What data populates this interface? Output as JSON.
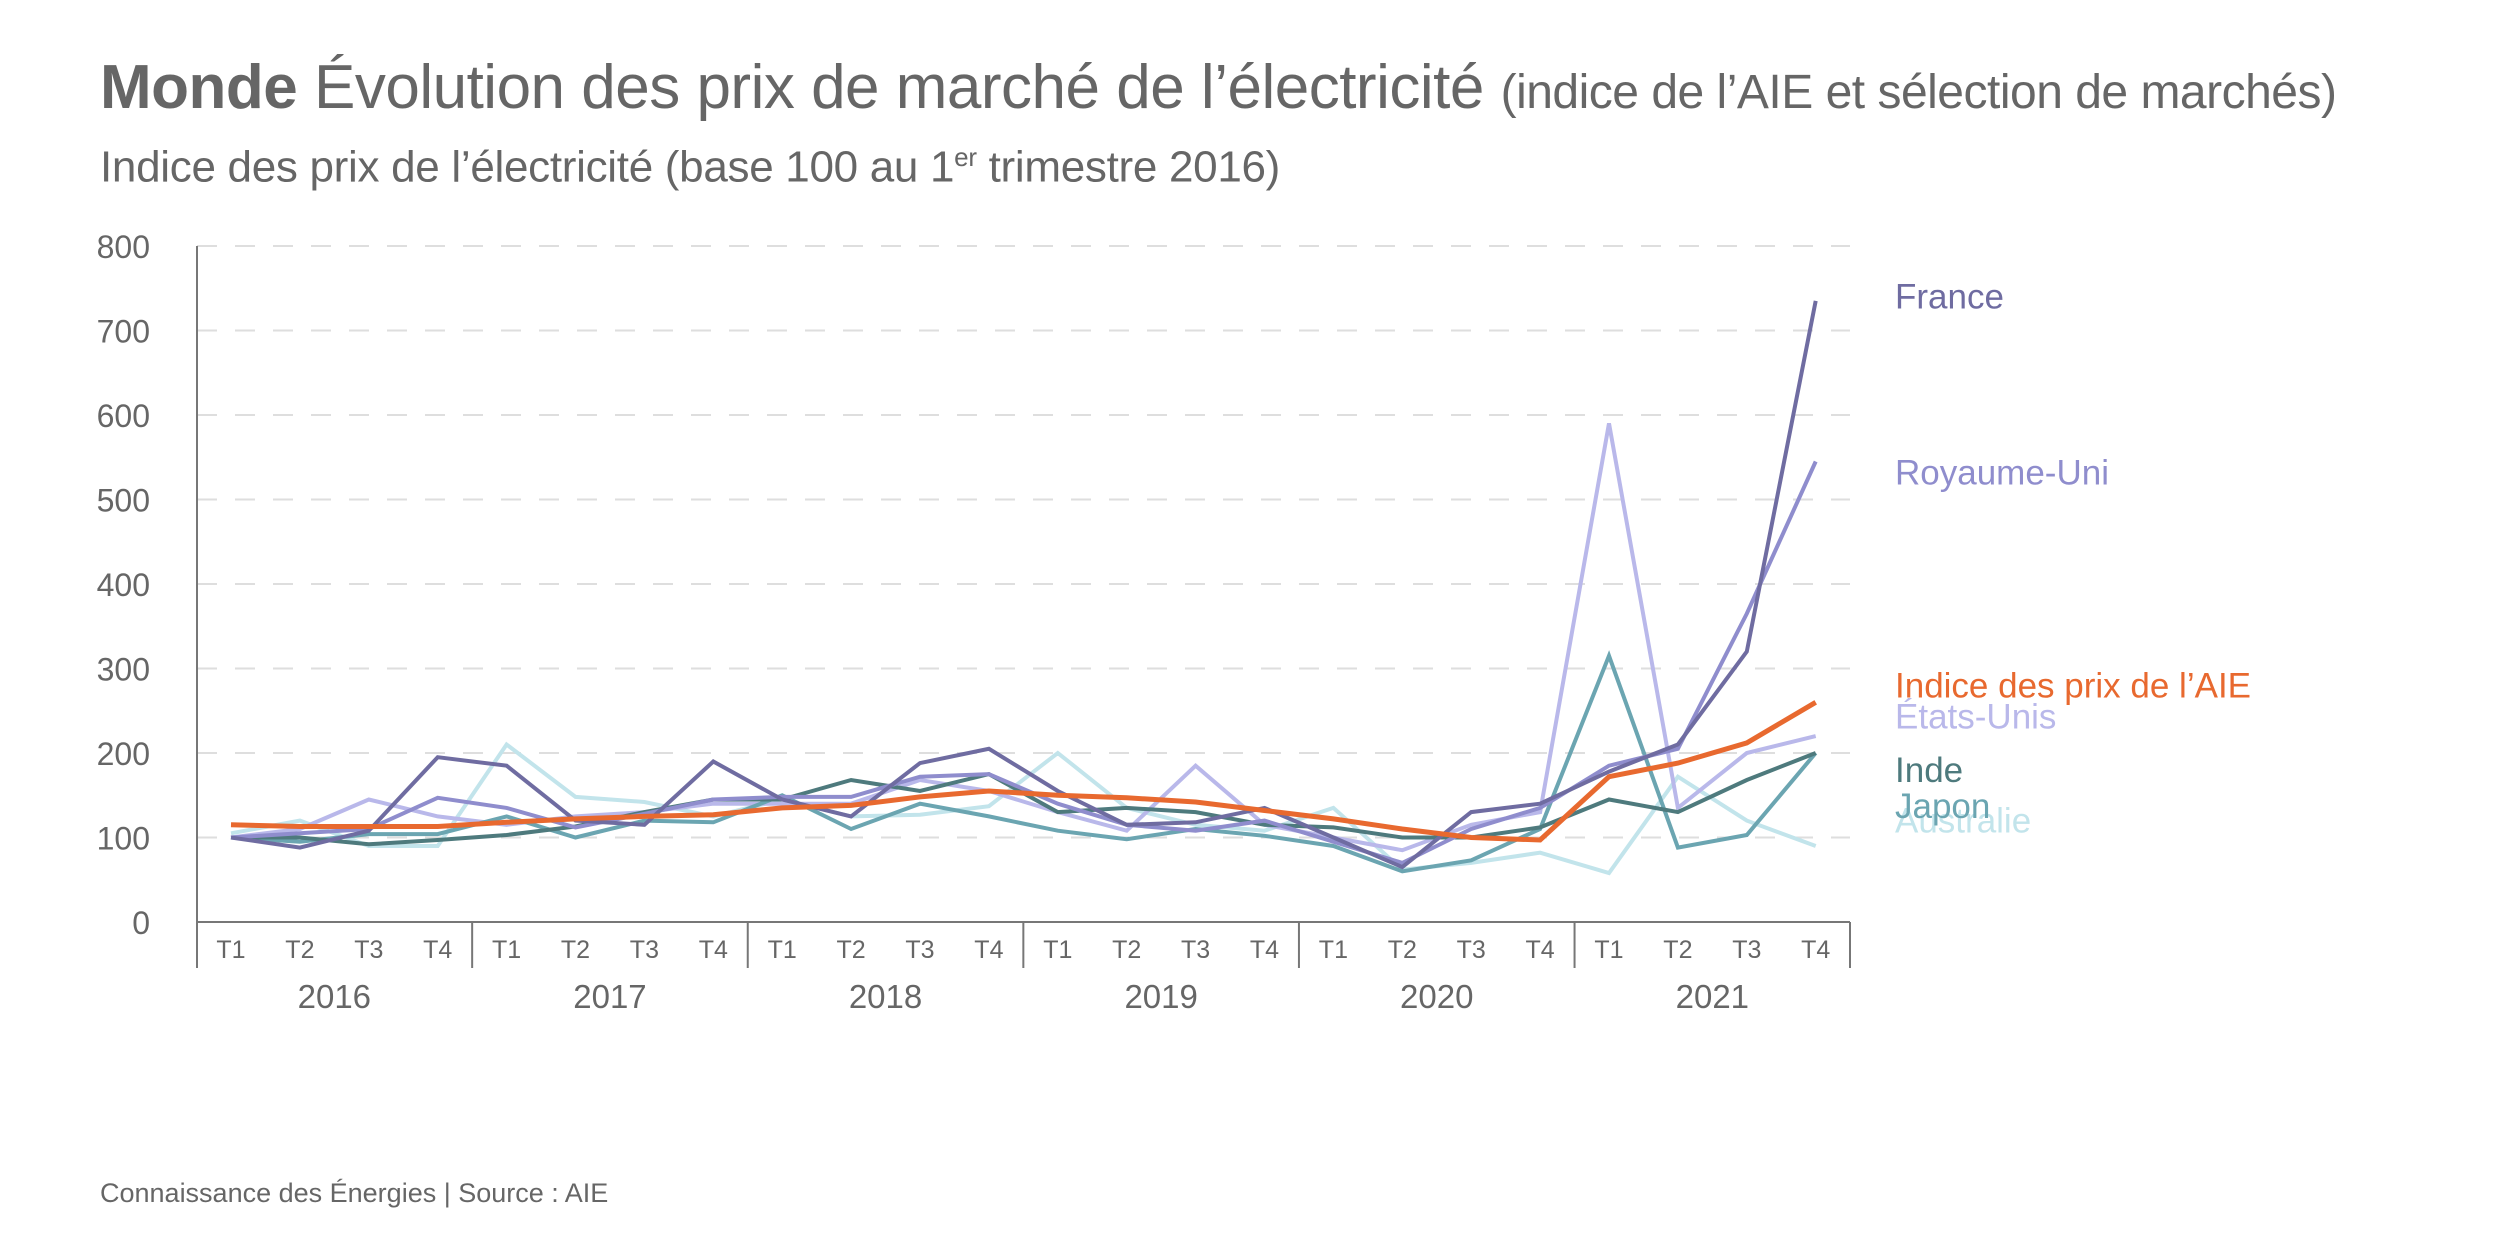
{
  "header": {
    "title_bold": "Monde",
    "title_main": "Évolution des prix de marché de l’électricité",
    "title_paren": "(indice de l’AIE et sélection de marchés)",
    "subtitle_pre": "Indice des prix de l’électricité (base 100 au 1",
    "subtitle_sup": "er",
    "subtitle_post": " trimestre 2016)"
  },
  "footer": "Connaissance des Énergies | Source : AIE",
  "chart_data": {
    "type": "line",
    "title": "Monde Évolution des prix de marché de l’électricité (indice de l’AIE et sélection de marchés)",
    "subtitle": "Indice des prix de l’électricité (base 100 au 1er trimestre 2016)",
    "xlabel": "",
    "ylabel": "",
    "ylim": [
      0,
      800
    ],
    "yticks": [
      "0",
      "100",
      "200",
      "300",
      "400",
      "500",
      "600",
      "700",
      "800"
    ],
    "grid": "horizontal-dashed",
    "legend_position": "right-inline",
    "years": [
      "2016",
      "2017",
      "2018",
      "2019",
      "2020",
      "2021"
    ],
    "quarters": [
      "T1",
      "T2",
      "T3",
      "T4"
    ],
    "x": [
      "2016 T1",
      "2016 T2",
      "2016 T3",
      "2016 T4",
      "2017 T1",
      "2017 T2",
      "2017 T3",
      "2017 T4",
      "2018 T1",
      "2018 T2",
      "2018 T3",
      "2018 T4",
      "2019 T1",
      "2019 T2",
      "2019 T3",
      "2019 T4",
      "2020 T1",
      "2020 T2",
      "2020 T3",
      "2020 T4",
      "2021 T1",
      "2021 T2",
      "2021 T3",
      "2021 T4"
    ],
    "series": [
      {
        "name": "Australie",
        "color": "#c2e4eb",
        "legend_value": 120,
        "values": [
          105,
          120,
          90,
          90,
          210,
          148,
          142,
          125,
          145,
          125,
          127,
          137,
          200,
          135,
          115,
          108,
          135,
          62,
          70,
          82,
          58,
          172,
          120,
          90
        ]
      },
      {
        "name": "États-Unis",
        "color": "#b9b8ea",
        "legend_value": 243,
        "values": [
          100,
          110,
          145,
          125,
          115,
          125,
          130,
          140,
          140,
          140,
          168,
          155,
          130,
          108,
          185,
          115,
          100,
          85,
          115,
          130,
          590,
          135,
          200,
          220
        ]
      },
      {
        "name": "Japon",
        "color": "#6ba5b1",
        "legend_value": 137,
        "values": [
          100,
          95,
          104,
          104,
          125,
          100,
          120,
          118,
          150,
          110,
          140,
          125,
          108,
          98,
          110,
          102,
          90,
          60,
          73,
          110,
          315,
          88,
          103,
          200
        ]
      },
      {
        "name": "Inde",
        "color": "#4e7a7d",
        "legend_value": 180,
        "values": [
          100,
          100,
          92,
          97,
          103,
          113,
          130,
          145,
          145,
          168,
          155,
          175,
          130,
          135,
          130,
          115,
          112,
          100,
          100,
          112,
          145,
          130,
          168,
          200
        ]
      },
      {
        "name": "Royaume-Uni",
        "color": "#8f8dcd",
        "legend_value": 532,
        "values": [
          100,
          105,
          110,
          147,
          135,
          112,
          128,
          145,
          148,
          148,
          172,
          175,
          140,
          115,
          108,
          120,
          95,
          70,
          110,
          135,
          185,
          205,
          365,
          545
        ]
      },
      {
        "name": "France",
        "color": "#6f6ca1",
        "legend_value": 740,
        "values": [
          100,
          88,
          108,
          195,
          185,
          120,
          115,
          190,
          145,
          125,
          188,
          205,
          155,
          115,
          118,
          135,
          100,
          65,
          130,
          140,
          178,
          210,
          320,
          735
        ]
      },
      {
        "name": "Indice des prix de l’AIE",
        "color": "#e8692f",
        "legend_value": 280,
        "values": [
          115,
          113,
          113,
          113,
          118,
          122,
          125,
          127,
          135,
          138,
          148,
          155,
          150,
          147,
          142,
          132,
          122,
          110,
          100,
          97,
          172,
          188,
          212,
          260
        ]
      }
    ]
  }
}
